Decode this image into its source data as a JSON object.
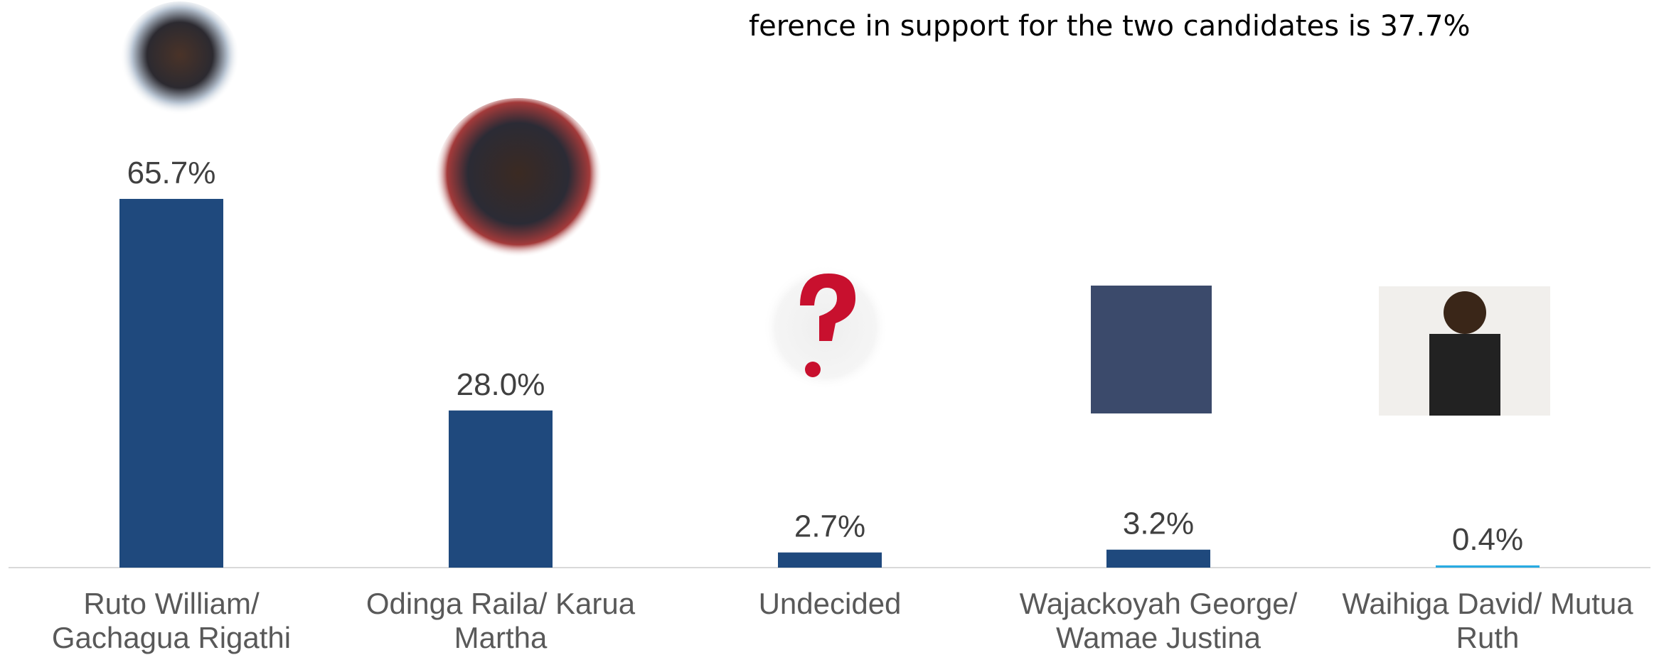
{
  "chart_data": {
    "type": "bar",
    "annotation": "ference in support for the two candidates is 37.7%",
    "categories": [
      "Ruto William/ Gachagua Rigathi",
      "Odinga Raila/ Karua Martha",
      "Undecided",
      "Wajackoyah George/ Wamae Justina",
      "Waihiga David/ Mutua Ruth"
    ],
    "values": [
      65.7,
      28.0,
      2.7,
      3.2,
      0.4
    ],
    "value_labels": [
      "65.7%",
      "28.0%",
      "2.7%",
      "3.2%",
      "0.4%"
    ],
    "colors": [
      "#1f497d",
      "#1f497d",
      "#1f497d",
      "#1f497d",
      "#29abe2"
    ]
  }
}
